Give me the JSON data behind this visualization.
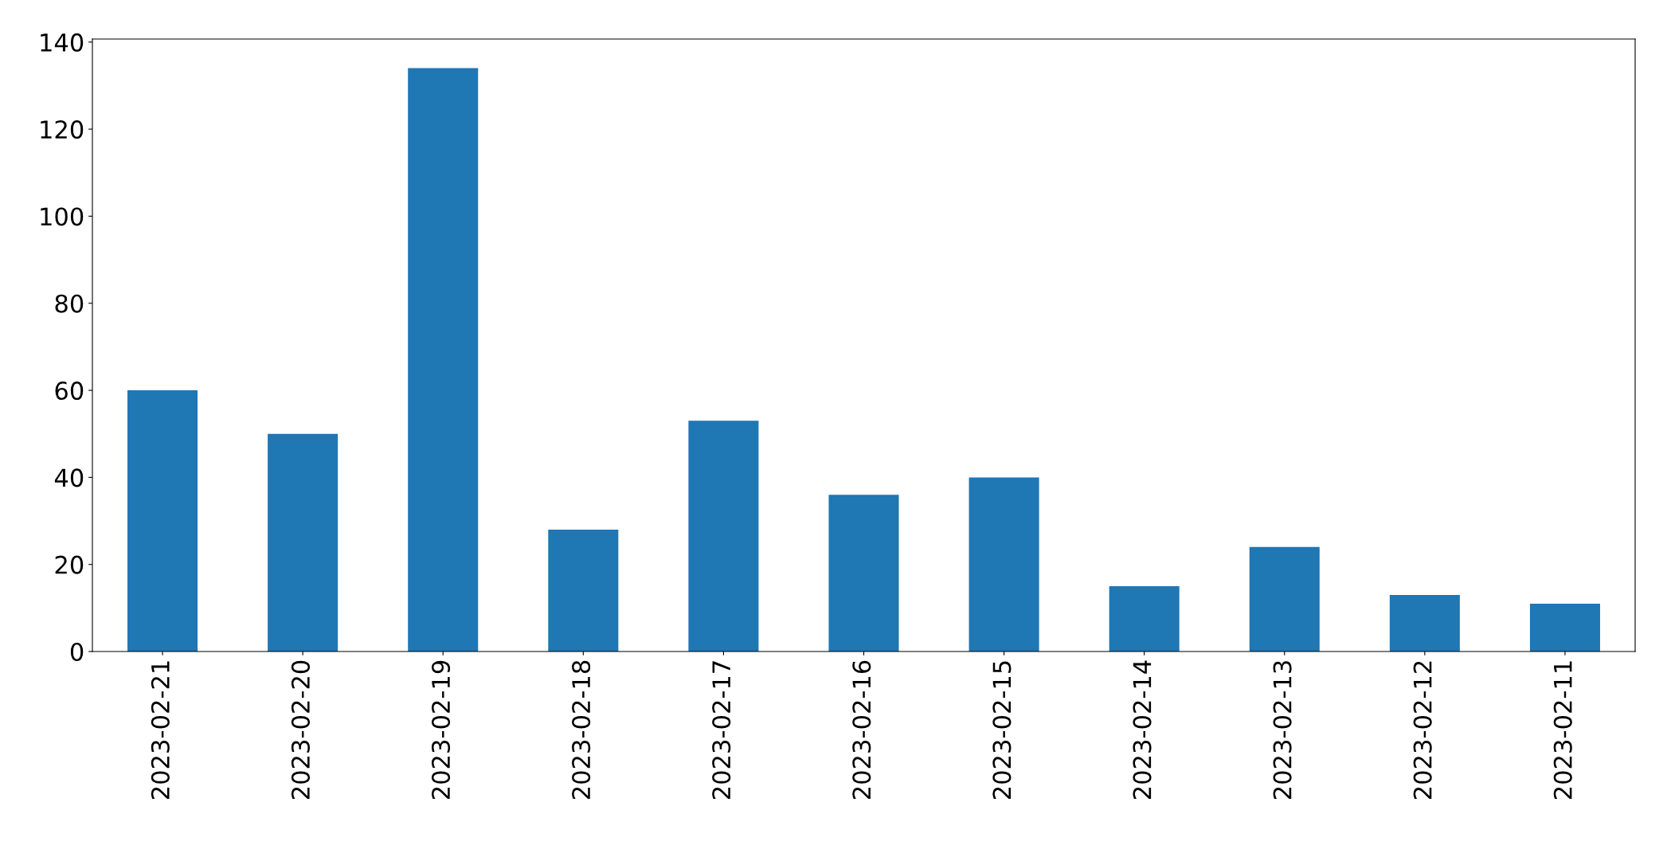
{
  "chart_data": {
    "type": "bar",
    "categories": [
      "2023-02-21",
      "2023-02-20",
      "2023-02-19",
      "2023-02-18",
      "2023-02-17",
      "2023-02-16",
      "2023-02-15",
      "2023-02-14",
      "2023-02-13",
      "2023-02-12",
      "2023-02-11"
    ],
    "values": [
      60,
      50,
      134,
      28,
      53,
      36,
      40,
      15,
      24,
      13,
      11
    ],
    "color": "#1f77b4",
    "ylim": [
      0,
      140.7
    ],
    "yticks": [
      0,
      20,
      40,
      60,
      80,
      100,
      120,
      140
    ],
    "grid": false,
    "legend": false
  }
}
